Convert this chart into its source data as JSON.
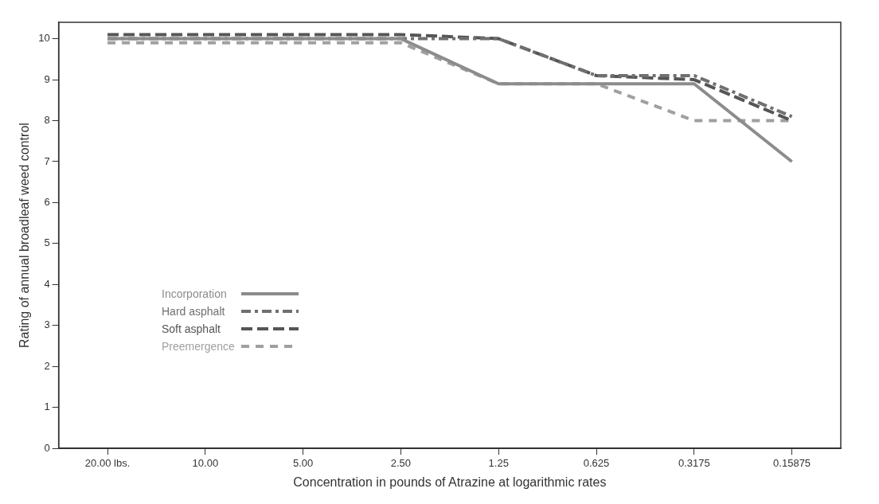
{
  "chart_data": {
    "type": "line",
    "xlabel": "Concentration in pounds of Atrazine at logarithmic rates",
    "ylabel": "Rating of annual broadleaf weed control",
    "categories": [
      "20.00 lbs.",
      "10.00",
      "5.00",
      "2.50",
      "1.25",
      "0.625",
      "0.3175",
      "0.15875"
    ],
    "ylim": [
      0,
      10.4
    ],
    "yticks": [
      0,
      1,
      2,
      3,
      4,
      5,
      6,
      7,
      8,
      9,
      10
    ],
    "grid": false,
    "legend": "bottom left",
    "marker": "none",
    "series": [
      {
        "name": "Incorporation",
        "color": "#8c8c8c",
        "line_style": "solid",
        "values": [
          10,
          10,
          10,
          10,
          8.9,
          8.9,
          8.9,
          7
        ]
      },
      {
        "name": "Hard asphalt",
        "color": "#707070",
        "line_style": "dashdot",
        "values": [
          10,
          10,
          10,
          10,
          10,
          9.1,
          9.1,
          8.1
        ]
      },
      {
        "name": "Soft asphalt",
        "color": "#555555",
        "line_style": "dashed",
        "values": [
          10.1,
          10.1,
          10.1,
          10.1,
          10,
          9.1,
          9,
          8
        ]
      },
      {
        "name": "Preemergence",
        "color": "#a0a0a0",
        "line_style": "dotted",
        "values": [
          9.9,
          9.9,
          9.9,
          9.9,
          8.9,
          8.9,
          8,
          8
        ]
      }
    ]
  }
}
